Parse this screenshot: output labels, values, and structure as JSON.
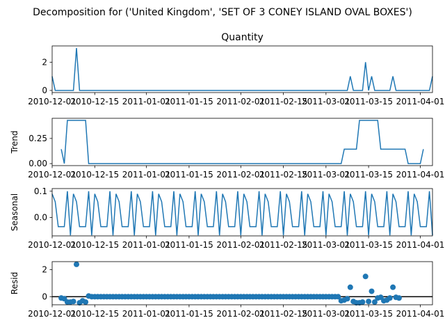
{
  "chart_data": {
    "type": "line",
    "suptitle": "Decomposition for ('United Kingdom', 'SET OF 3 CONEY ISLAND OVAL BOXES')",
    "x_tick_labels": [
      "2010-12-01",
      "2010-12-15",
      "2011-01-01",
      "2011-01-15",
      "2011-02-01",
      "2011-02-15",
      "2011-03-01",
      "2011-03-15",
      "2011-04-01"
    ],
    "x_range": [
      "2010-12-01",
      "2011-04-05"
    ],
    "panels": [
      {
        "id": "observed",
        "kind": "line",
        "title": "Quantity",
        "ylabel": "",
        "ylim": [
          -0.15,
          3.15
        ],
        "yticks": [
          0,
          2
        ],
        "ytick_labels": [
          "0",
          "2"
        ],
        "color": "#1f77b4",
        "points": [
          [
            "2010-12-01",
            1
          ],
          [
            "2010-12-02",
            0
          ],
          [
            "2010-12-08",
            0
          ],
          [
            "2010-12-09",
            3
          ],
          [
            "2010-12-10",
            0
          ],
          [
            "2011-03-08",
            0
          ],
          [
            "2011-03-09",
            1
          ],
          [
            "2011-03-10",
            0
          ],
          [
            "2011-03-13",
            0
          ],
          [
            "2011-03-14",
            2
          ],
          [
            "2011-03-15",
            0
          ],
          [
            "2011-03-16",
            1
          ],
          [
            "2011-03-17",
            0
          ],
          [
            "2011-03-22",
            0
          ],
          [
            "2011-03-23",
            1
          ],
          [
            "2011-03-24",
            0
          ],
          [
            "2011-04-04",
            0
          ],
          [
            "2011-04-05",
            1
          ]
        ]
      },
      {
        "id": "trend",
        "kind": "line",
        "title": "",
        "ylabel": "Trend",
        "ylim": [
          -0.02,
          0.45
        ],
        "yticks": [
          0,
          0.25
        ],
        "ytick_labels": [
          "0.00",
          "0.25"
        ],
        "color": "#1f77b4",
        "points": [
          [
            "2010-12-04",
            0.143
          ],
          [
            "2010-12-05",
            0
          ],
          [
            "2010-12-06",
            0.429
          ],
          [
            "2010-12-12",
            0.429
          ],
          [
            "2010-12-13",
            0
          ],
          [
            "2011-03-06",
            0
          ],
          [
            "2011-03-07",
            0.143
          ],
          [
            "2011-03-11",
            0.143
          ],
          [
            "2011-03-12",
            0.429
          ],
          [
            "2011-03-18",
            0.429
          ],
          [
            "2011-03-19",
            0.143
          ],
          [
            "2011-03-27",
            0.143
          ],
          [
            "2011-03-28",
            0
          ],
          [
            "2011-04-01",
            0
          ],
          [
            "2011-04-02",
            0.143
          ]
        ]
      },
      {
        "id": "seasonal",
        "kind": "seasonal",
        "title": "",
        "ylabel": "Seasonal",
        "ylim": [
          -0.07,
          0.11
        ],
        "yticks": [
          0,
          0.1
        ],
        "ytick_labels": [
          "0.0",
          "0.1"
        ],
        "color": "#1f77b4",
        "period_pattern": [
          0.09,
          0.06,
          -0.035,
          -0.035,
          -0.035,
          0.1,
          -0.068
        ]
      },
      {
        "id": "resid",
        "kind": "scatter",
        "title": "",
        "ylabel": "Resid",
        "ylim": [
          -0.6,
          2.6
        ],
        "yticks": [
          0,
          2
        ],
        "ytick_labels": [
          "0",
          "2"
        ],
        "color": "#1f77b4",
        "zero_line": true,
        "points": [
          [
            "2010-12-04",
            -0.1
          ],
          [
            "2010-12-05",
            -0.15
          ],
          [
            "2010-12-06",
            -0.4
          ],
          [
            "2010-12-07",
            -0.4
          ],
          [
            "2010-12-08",
            -0.35
          ],
          [
            "2010-12-09",
            2.4
          ],
          [
            "2010-12-10",
            -0.45
          ],
          [
            "2010-12-11",
            -0.3
          ],
          [
            "2010-12-12",
            -0.4
          ],
          [
            "2010-12-13",
            0.05
          ],
          [
            "2011-03-06",
            -0.3
          ],
          [
            "2011-03-07",
            -0.25
          ],
          [
            "2011-03-08",
            -0.15
          ],
          [
            "2011-03-09",
            0.7
          ],
          [
            "2011-03-10",
            -0.35
          ],
          [
            "2011-03-11",
            -0.45
          ],
          [
            "2011-03-12",
            -0.45
          ],
          [
            "2011-03-13",
            -0.4
          ],
          [
            "2011-03-14",
            1.5
          ],
          [
            "2011-03-15",
            -0.35
          ],
          [
            "2011-03-16",
            0.4
          ],
          [
            "2011-03-17",
            -0.4
          ],
          [
            "2011-03-18",
            -0.1
          ],
          [
            "2011-03-19",
            -0.05
          ],
          [
            "2011-03-20",
            -0.3
          ],
          [
            "2011-03-21",
            -0.25
          ],
          [
            "2011-03-22",
            -0.1
          ],
          [
            "2011-03-23",
            0.7
          ],
          [
            "2011-03-24",
            -0.05
          ],
          [
            "2011-03-25",
            -0.1
          ]
        ]
      }
    ]
  }
}
